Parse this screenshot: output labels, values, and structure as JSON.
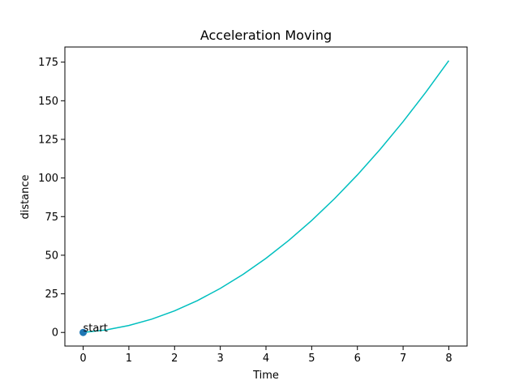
{
  "chart_data": {
    "type": "line",
    "title": "Acceleration Moving",
    "x_label": "Time",
    "y_label": "distance",
    "x": [
      0,
      0.5,
      1,
      1.5,
      2,
      2.5,
      3,
      3.5,
      4,
      4.5,
      5,
      5.5,
      6,
      6.5,
      7,
      7.5,
      8
    ],
    "series": [
      {
        "color": "#00bfbf",
        "values": [
          0,
          1.625,
          4.5,
          8.625,
          14,
          20.625,
          28.5,
          37.625,
          48,
          59.625,
          72.5,
          86.625,
          102,
          118.625,
          136.5,
          155.625,
          176
        ]
      }
    ],
    "points": {
      "color": "#1f77b4",
      "x": [
        0
      ],
      "y": [
        0
      ]
    },
    "annotation": {
      "text": "start",
      "x": 0,
      "y": 0
    },
    "xlim": [
      -0.4,
      8.4
    ],
    "ylim": [
      -8.8,
      184.8
    ],
    "xticks": [
      0,
      1,
      2,
      3,
      4,
      5,
      6,
      7,
      8
    ],
    "yticks": [
      0,
      25,
      50,
      75,
      100,
      125,
      150,
      175
    ],
    "grid": false
  }
}
